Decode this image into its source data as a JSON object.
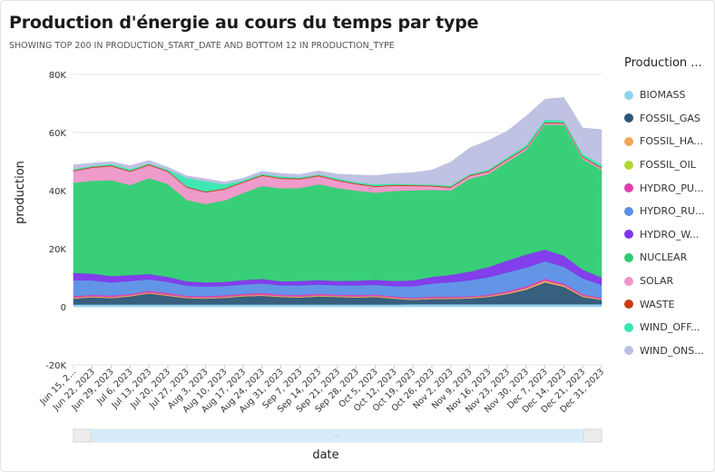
{
  "title": "Production d'énergie au cours du temps par type",
  "subtitle": "SHOWING TOP 200 IN PRODUCTION_START_DATE AND BOTTOM 12 IN PRODUCTION_TYPE",
  "legend": {
    "title": "Production ...",
    "items": [
      {
        "label": "BIOMASS",
        "color": "#8fd3f0"
      },
      {
        "label": "FOSSIL_GAS",
        "color": "#2c5677"
      },
      {
        "label": "FOSSIL_HA...",
        "color": "#f4a55c"
      },
      {
        "label": "FOSSIL_OIL",
        "color": "#b3d634"
      },
      {
        "label": "HYDRO_PU...",
        "color": "#e03cae"
      },
      {
        "label": "HYDRO_RU...",
        "color": "#5b8fe6"
      },
      {
        "label": "HYDRO_W...",
        "color": "#7b35ea"
      },
      {
        "label": "NUCLEAR",
        "color": "#2ecc71"
      },
      {
        "label": "SOLAR",
        "color": "#ee96c8"
      },
      {
        "label": "WASTE",
        "color": "#cc3b10"
      },
      {
        "label": "WIND_OFF...",
        "color": "#36e6b0"
      },
      {
        "label": "WIND_ONS...",
        "color": "#bcbfe0"
      }
    ]
  },
  "chart_data": {
    "type": "area",
    "stacked": true,
    "xlabel": "date",
    "ylabel": "production",
    "ylim": [
      -20000,
      80000
    ],
    "yticks": [
      -20000,
      0,
      20000,
      40000,
      60000,
      80000
    ],
    "ytick_labels": [
      "-20K",
      "0",
      "20K",
      "40K",
      "60K",
      "80K"
    ],
    "x_tick_labels": [
      "Jun 15, 2...",
      "Jun 22, 2023",
      "Jun 29, 2023",
      "Jul 6, 2023",
      "Jul 13, 2023",
      "Jul 20, 2023",
      "Jul 27, 2023",
      "Aug 3, 2023",
      "Aug 10, 2023",
      "Aug 17, 2023",
      "Aug 24, 2023",
      "Aug 31, 2023",
      "Sep 7, 2023",
      "Sep 14, 2023",
      "Sep 21, 2023",
      "Sep 28, 2023",
      "Oct 5, 2023",
      "Oct 12, 2023",
      "Oct 19, 2023",
      "Oct 26, 2023",
      "Nov 2, 2023",
      "Nov 9, 2023",
      "Nov 16, 2023",
      "Nov 23, 2023",
      "Nov 30, 2023",
      "Dec 7, 2023",
      "Dec 14, 2023",
      "Dec 21, 2023",
      "Dec 31, 2023"
    ],
    "grid": true,
    "legend_position": "right",
    "x": [
      "Jun 15",
      "Jun 22",
      "Jun 29",
      "Jul 6",
      "Jul 13",
      "Jul 20",
      "Jul 27",
      "Aug 3",
      "Aug 10",
      "Aug 17",
      "Aug 24",
      "Aug 31",
      "Sep 7",
      "Sep 14",
      "Sep 21",
      "Sep 28",
      "Oct 5",
      "Oct 12",
      "Oct 19",
      "Oct 26",
      "Nov 2",
      "Nov 9",
      "Nov 16",
      "Nov 23",
      "Nov 30",
      "Dec 7",
      "Dec 14",
      "Dec 21",
      "Dec 31"
    ],
    "series": [
      {
        "name": "BIOMASS",
        "color": "#8fd3f0",
        "values": [
          800,
          800,
          800,
          800,
          800,
          800,
          800,
          800,
          800,
          800,
          800,
          800,
          800,
          800,
          800,
          800,
          800,
          800,
          900,
          900,
          900,
          900,
          900,
          900,
          900,
          900,
          900,
          900,
          900
        ]
      },
      {
        "name": "FOSSIL_GAS",
        "color": "#2c5677",
        "values": [
          2000,
          2500,
          2200,
          2800,
          3800,
          3000,
          2200,
          2000,
          2300,
          2800,
          3000,
          2600,
          2400,
          2800,
          2600,
          2400,
          2600,
          2000,
          1500,
          1800,
          1800,
          2000,
          2500,
          3500,
          5000,
          7500,
          6000,
          2500,
          1500
        ]
      },
      {
        "name": "FOSSIL_HA...",
        "color": "#f4a55c",
        "values": [
          200,
          200,
          200,
          200,
          200,
          200,
          200,
          200,
          200,
          200,
          200,
          200,
          200,
          200,
          200,
          200,
          200,
          200,
          200,
          200,
          200,
          200,
          200,
          300,
          400,
          500,
          400,
          300,
          200
        ]
      },
      {
        "name": "FOSSIL_OIL",
        "color": "#b3d634",
        "values": [
          100,
          100,
          100,
          100,
          100,
          100,
          100,
          100,
          100,
          100,
          100,
          100,
          100,
          100,
          100,
          100,
          100,
          100,
          100,
          100,
          100,
          100,
          100,
          100,
          100,
          100,
          100,
          100,
          100
        ]
      },
      {
        "name": "HYDRO_PU...",
        "color": "#e03cae",
        "values": [
          600,
          500,
          600,
          500,
          600,
          700,
          500,
          500,
          600,
          600,
          700,
          500,
          600,
          600,
          500,
          600,
          500,
          500,
          400,
          500,
          500,
          400,
          500,
          600,
          600,
          700,
          600,
          500,
          400
        ]
      },
      {
        "name": "HYDRO_RU...",
        "color": "#5b8fe6",
        "values": [
          5500,
          5000,
          4500,
          4500,
          4000,
          3800,
          3500,
          3400,
          3200,
          3200,
          3300,
          3200,
          3300,
          3200,
          3200,
          3300,
          3400,
          3500,
          4000,
          4500,
          5000,
          5500,
          6000,
          6500,
          6500,
          6000,
          5800,
          5500,
          4500
        ]
      },
      {
        "name": "HYDRO_W...",
        "color": "#7b35ea",
        "values": [
          2500,
          2300,
          2200,
          2000,
          1800,
          1700,
          1500,
          1400,
          1400,
          1500,
          1500,
          1400,
          1500,
          1500,
          1500,
          1600,
          1700,
          1800,
          2000,
          2300,
          2500,
          3000,
          3500,
          4000,
          4500,
          4000,
          3800,
          3000,
          2500
        ]
      },
      {
        "name": "NUCLEAR",
        "color": "#2ecc71",
        "values": [
          31000,
          32000,
          33000,
          31000,
          33000,
          32000,
          28000,
          27000,
          28000,
          30000,
          32000,
          32000,
          32000,
          33000,
          32000,
          31000,
          30000,
          31000,
          31000,
          30000,
          29000,
          32000,
          32000,
          34000,
          36000,
          43000,
          45000,
          38000,
          37000
        ]
      },
      {
        "name": "SOLAR",
        "color": "#ee96c8",
        "values": [
          4000,
          4500,
          4800,
          4600,
          4500,
          4200,
          4300,
          4000,
          3800,
          3600,
          3500,
          3300,
          3000,
          2800,
          2500,
          2200,
          2000,
          1800,
          1500,
          1200,
          1000,
          900,
          800,
          700,
          600,
          500,
          500,
          600,
          600
        ]
      },
      {
        "name": "WASTE",
        "color": "#cc3b10",
        "values": [
          300,
          300,
          300,
          300,
          300,
          300,
          300,
          300,
          300,
          300,
          300,
          300,
          300,
          300,
          300,
          300,
          300,
          300,
          300,
          300,
          300,
          300,
          300,
          300,
          300,
          300,
          300,
          300,
          300
        ]
      },
      {
        "name": "WIND_OFF...",
        "color": "#36e6b0",
        "values": [
          400,
          300,
          500,
          600,
          300,
          400,
          3000,
          3500,
          1500,
          500,
          400,
          500,
          400,
          300,
          500,
          400,
          600,
          400,
          300,
          300,
          500,
          400,
          500,
          600,
          800,
          1000,
          700,
          900,
          1000
        ]
      },
      {
        "name": "WIND_ONS...",
        "color": "#bcbfe0",
        "values": [
          1500,
          1000,
          800,
          1200,
          1000,
          900,
          700,
          900,
          800,
          700,
          900,
          1000,
          1000,
          1200,
          1500,
          2500,
          3000,
          3500,
          4000,
          5000,
          8000,
          9000,
          10000,
          9000,
          10000,
          7000,
          8000,
          9000,
          12000
        ]
      }
    ]
  }
}
